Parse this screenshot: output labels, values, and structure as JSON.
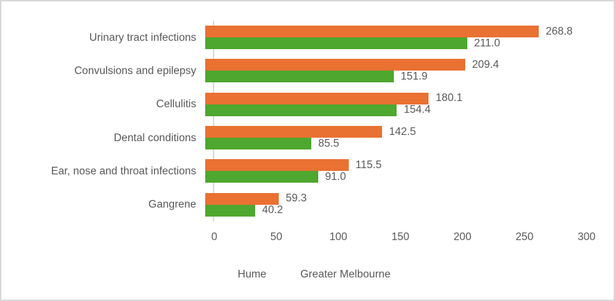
{
  "chart_data": {
    "type": "bar",
    "orientation": "horizontal",
    "title": "",
    "xlabel": "",
    "ylabel": "",
    "categories": [
      "Urinary tract infections",
      "Convulsions and epilepsy",
      "Cellulitis",
      "Dental conditions",
      "Ear, nose and throat infections",
      "Gangrene"
    ],
    "series": [
      {
        "name": "Hume",
        "color": "#E97132",
        "values": [
          268.8,
          209.4,
          180.1,
          142.5,
          115.5,
          59.3
        ]
      },
      {
        "name": "Greater Melbourne",
        "color": "#4EA72E",
        "values": [
          211.0,
          151.9,
          154.4,
          85.5,
          91.0,
          40.2
        ]
      }
    ],
    "data_labels": [
      "268.8",
      "211.0",
      "209.4",
      "151.9",
      "180.1",
      "154.4",
      "142.5",
      "85.5",
      "115.5",
      "91.0",
      "59.3",
      "40.2"
    ],
    "xlim": [
      0,
      300
    ],
    "x_ticks": [
      "0",
      "50",
      "100",
      "150",
      "200",
      "250",
      "300"
    ],
    "grid": false,
    "legend_position": "bottom",
    "axis_color": "#D9D9D9",
    "text_color": "#595959",
    "frame_border_color": "#D8D8D8",
    "background": "#FFFFFF"
  }
}
